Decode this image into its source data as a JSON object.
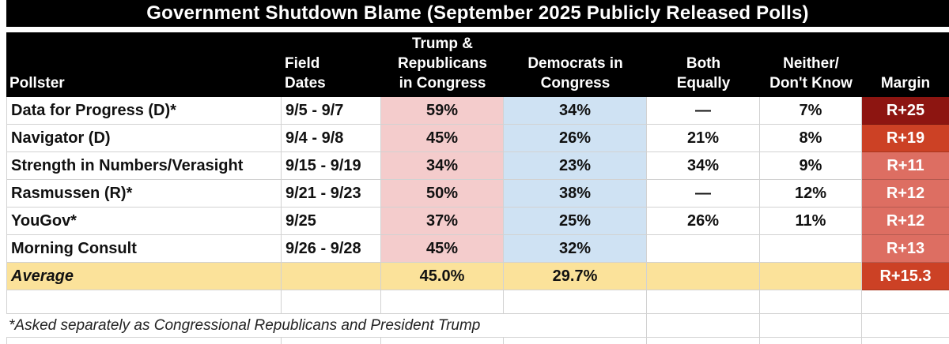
{
  "title": "Government Shutdown Blame (September 2025 Publicly Released Polls)",
  "columns": [
    "Pollster",
    "Field\nDates",
    "Trump &\nRepublicans\nin Congress",
    "Democrats in\nCongress",
    "Both\nEqually",
    "Neither/\nDon't Know",
    "Margin"
  ],
  "rows": [
    {
      "pollster": "Data for Progress (D)*",
      "field_dates": "9/5 - 9/7",
      "trump_republicans": "59%",
      "democrats": "34%",
      "both_equally": "—",
      "neither_dont_know": "7%",
      "margin": "R+25",
      "margin_color": "#8d1511"
    },
    {
      "pollster": "Navigator (D)",
      "field_dates": "9/4 - 9/8",
      "trump_republicans": "45%",
      "democrats": "26%",
      "both_equally": "21%",
      "neither_dont_know": "8%",
      "margin": "R+19",
      "margin_color": "#cc4125"
    },
    {
      "pollster": "Strength in Numbers/Verasight",
      "field_dates": "9/15 - 9/19",
      "trump_republicans": "34%",
      "democrats": "23%",
      "both_equally": "34%",
      "neither_dont_know": "9%",
      "margin": "R+11",
      "margin_color": "#dd6e62"
    },
    {
      "pollster": "Rasmussen (R)*",
      "field_dates": "9/21 - 9/23",
      "trump_republicans": "50%",
      "democrats": "38%",
      "both_equally": "—",
      "neither_dont_know": "12%",
      "margin": "R+12",
      "margin_color": "#dd6e62"
    },
    {
      "pollster": "YouGov*",
      "field_dates": "9/25",
      "trump_republicans": "37%",
      "democrats": "25%",
      "both_equally": "26%",
      "neither_dont_know": "11%",
      "margin": "R+12",
      "margin_color": "#dd6e62"
    },
    {
      "pollster": "Morning Consult",
      "field_dates": "9/26 - 9/28",
      "trump_republicans": "45%",
      "democrats": "32%",
      "both_equally": "",
      "neither_dont_know": "",
      "margin": "R+13",
      "margin_color": "#dd6e62"
    }
  ],
  "average": {
    "label": "Average",
    "field_dates": "",
    "trump_republicans": "45.0%",
    "democrats": "29.7%",
    "both_equally": "",
    "neither_dont_know": "",
    "margin": "R+15.3",
    "margin_color": "#cc4125"
  },
  "footnote": "*Asked separately as Congressional Republicans and President Trump",
  "colors": {
    "header_bg": "#000000",
    "header_text": "#ffffff",
    "trump_column_bg": "#f4cccc",
    "democrats_column_bg": "#cfe2f3",
    "average_row_bg": "#fbe29a",
    "gridline": "#d2d2d2",
    "margin_dark_red": "#8d1511",
    "margin_mid_red": "#cc4125",
    "margin_light_red": "#dd6e62"
  }
}
